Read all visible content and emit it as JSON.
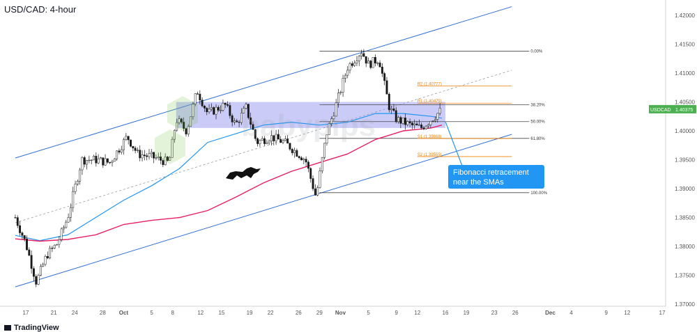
{
  "header": {
    "title": "USD/CAD: 4-hour"
  },
  "footer": {
    "brand": "TradingView"
  },
  "colors": {
    "candle": "#1a1a1a",
    "sma_fast": "#2196f3",
    "sma_slow": "#e91e63",
    "channel": "#2f6fd6",
    "zone_fill": "#8c8cf0",
    "pivot": "#f08000",
    "price_tag": "#4caf50",
    "annotation_bg": "#2196f3"
  },
  "icons": {
    "bull": "bull-icon",
    "logo": "babypips-logo-watermark"
  },
  "chart_data": {
    "type": "candlestick",
    "symbol": "USDCAD",
    "timeframe": "4-hour",
    "last_price": "1.40375",
    "y_ticks": [
      "1.42000",
      "1.41500",
      "1.41000",
      "1.40500",
      "1.40000",
      "1.39500",
      "1.39000",
      "1.38500",
      "1.38000",
      "1.37500",
      "1.37000"
    ],
    "ylim": [
      1.3699,
      1.4225
    ],
    "x_ticks": [
      {
        "label": "17",
        "day": 0
      },
      {
        "label": "21",
        "day": 4
      },
      {
        "label": "24",
        "day": 7
      },
      {
        "label": "28",
        "day": 11
      },
      {
        "label": "Oct",
        "day": 14
      },
      {
        "label": "5",
        "day": 18
      },
      {
        "label": "8",
        "day": 21
      },
      {
        "label": "12",
        "day": 25
      },
      {
        "label": "15",
        "day": 28
      },
      {
        "label": "19",
        "day": 32
      },
      {
        "label": "22",
        "day": 35
      },
      {
        "label": "26",
        "day": 39
      },
      {
        "label": "29",
        "day": 42
      },
      {
        "label": "Nov",
        "day": 45
      },
      {
        "label": "5",
        "day": 49
      },
      {
        "label": "9",
        "day": 53
      },
      {
        "label": "12",
        "day": 56
      },
      {
        "label": "16",
        "day": 60
      },
      {
        "label": "19",
        "day": 63
      },
      {
        "label": "23",
        "day": 67
      },
      {
        "label": "26",
        "day": 70
      },
      {
        "label": "Dec",
        "day": 75
      },
      {
        "label": "4",
        "day": 78
      },
      {
        "label": "9",
        "day": 83
      },
      {
        "label": "12",
        "day": 86
      },
      {
        "label": "17",
        "day": 91
      }
    ],
    "x_unit": "days since Sep 17",
    "price_path": [
      [
        -1.5,
        1.385
      ],
      [
        0,
        1.3805
      ],
      [
        1.5,
        1.3738
      ],
      [
        3,
        1.3785
      ],
      [
        4.5,
        1.3805
      ],
      [
        6,
        1.385
      ],
      [
        8,
        1.395
      ],
      [
        10,
        1.395
      ],
      [
        12,
        1.3945
      ],
      [
        14.5,
        1.399
      ],
      [
        16,
        1.396
      ],
      [
        18,
        1.3955
      ],
      [
        20.5,
        1.3945
      ],
      [
        21.5,
        1.402
      ],
      [
        23,
        1.4
      ],
      [
        24.5,
        1.407
      ],
      [
        26,
        1.403
      ],
      [
        28.5,
        1.4045
      ],
      [
        30,
        1.401
      ],
      [
        31.5,
        1.404
      ],
      [
        33,
        1.398
      ],
      [
        35,
        1.399
      ],
      [
        37,
        1.398
      ],
      [
        38.5,
        1.3965
      ],
      [
        40,
        1.395
      ],
      [
        41.5,
        1.3885
      ],
      [
        43,
        1.3995
      ],
      [
        44.5,
        1.405
      ],
      [
        46,
        1.411
      ],
      [
        48,
        1.4138
      ],
      [
        49,
        1.4115
      ],
      [
        50.5,
        1.4125
      ],
      [
        52,
        1.404
      ],
      [
        53,
        1.402
      ],
      [
        55,
        1.401
      ],
      [
        56.5,
        1.4005
      ],
      [
        58,
        1.402
      ],
      [
        59.5,
        1.4037
      ]
    ],
    "fibonacci": [
      {
        "label": "0.00%",
        "price": 1.4138
      },
      {
        "label": "38.20%",
        "price": 1.4045
      },
      {
        "label": "50.00%",
        "price": 1.4016
      },
      {
        "label": "61.80%",
        "price": 1.3987
      },
      {
        "label": "100.00%",
        "price": 1.3893
      }
    ],
    "pivots": [
      {
        "label": "R2 (1.40777)",
        "price": 1.40777
      },
      {
        "label": "R1 (1.40479)",
        "price": 1.40479
      },
      {
        "label": "S1 (1.39868)",
        "price": 1.39868
      },
      {
        "label": "S2 (1.39555)",
        "price": 1.39555
      }
    ],
    "sma_fast": [
      [
        -1.5,
        1.3819
      ],
      [
        2,
        1.381
      ],
      [
        6,
        1.382
      ],
      [
        10,
        1.385
      ],
      [
        14,
        1.388
      ],
      [
        18,
        1.3905
      ],
      [
        22,
        1.3935
      ],
      [
        26,
        1.398
      ],
      [
        30,
        1.3995
      ],
      [
        34,
        1.401
      ],
      [
        38,
        1.4015
      ],
      [
        42,
        1.401
      ],
      [
        46,
        1.4015
      ],
      [
        50,
        1.403
      ],
      [
        54,
        1.403
      ],
      [
        58,
        1.4025
      ],
      [
        59.5,
        1.4022
      ]
    ],
    "sma_slow": [
      [
        -1.5,
        1.3813
      ],
      [
        2,
        1.3809
      ],
      [
        6,
        1.3812
      ],
      [
        10,
        1.382
      ],
      [
        14,
        1.3838
      ],
      [
        18,
        1.3845
      ],
      [
        22,
        1.385
      ],
      [
        26,
        1.3862
      ],
      [
        30,
        1.3885
      ],
      [
        34,
        1.391
      ],
      [
        38,
        1.393
      ],
      [
        42,
        1.3945
      ],
      [
        46,
        1.396
      ],
      [
        50,
        1.3985
      ],
      [
        54,
        1.4
      ],
      [
        58,
        1.4005
      ],
      [
        59.5,
        1.401
      ]
    ],
    "channel_upper": [
      [
        -1.5,
        1.3953
      ],
      [
        69.5,
        1.4215
      ]
    ],
    "channel_lower": [
      [
        -1.5,
        1.373
      ],
      [
        69.5,
        1.3994
      ]
    ],
    "channel_mid": [
      [
        -1.5,
        1.3841
      ],
      [
        69.5,
        1.4105
      ]
    ],
    "zone": {
      "day_from": 21.5,
      "day_to": 60,
      "price_low": 1.4005,
      "price_high": 1.405
    },
    "annotation": {
      "line1": "Fibonacci retracement",
      "line2": "near the SMAs"
    }
  }
}
